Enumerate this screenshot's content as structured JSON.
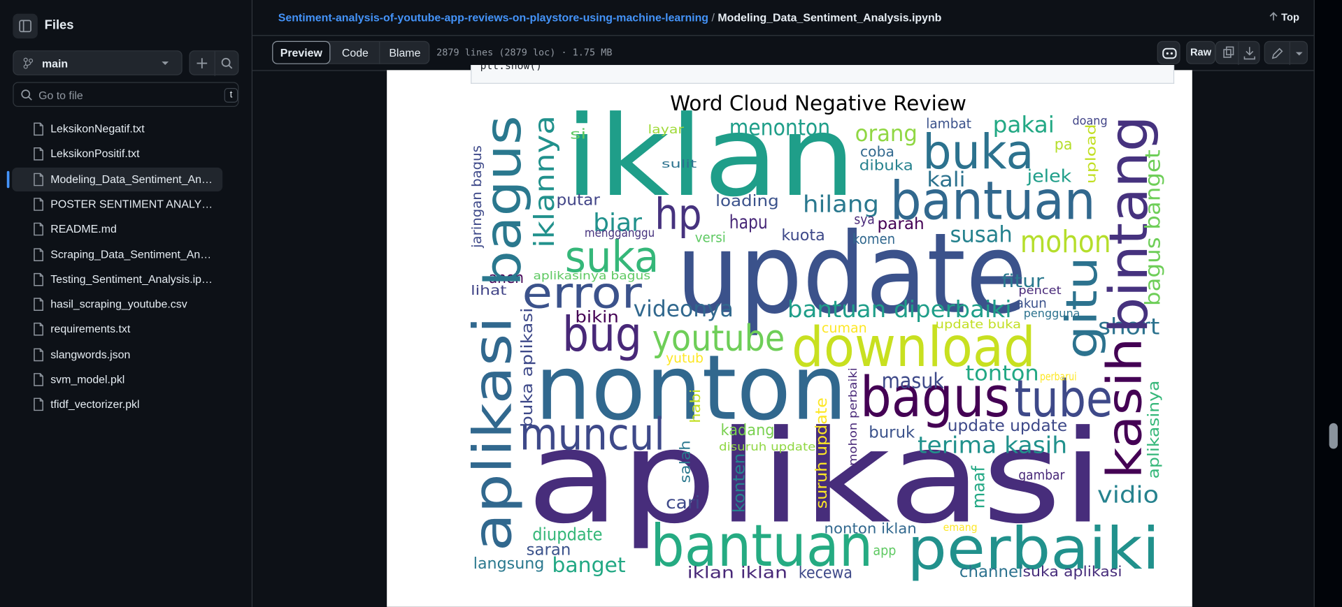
{
  "sidebar": {
    "title": "Files",
    "branch": "main",
    "search_placeholder": "Go to file",
    "search_shortcut": "t",
    "files": [
      "LeksikonNegatif.txt",
      "LeksikonPositif.txt",
      "Modeling_Data_Sentiment_Analysis.ipynb",
      "POSTER SENTIMENT ANALYSIS.pdf",
      "README.md",
      "Scraping_Data_Sentiment_Analysis.ipynb",
      "Testing_Sentiment_Analysis.ipynb",
      "hasil_scraping_youtube.csv",
      "requirements.txt",
      "slangwords.json",
      "svm_model.pkl",
      "tfidf_vectorizer.pkl"
    ]
  },
  "header": {
    "repo": "Sentiment-analysis-of-youtube-app-reviews-on-playstore-using-machine-learning",
    "separator": "/",
    "file": "Modeling_Data_Sentiment_Analysis.ipynb",
    "top": "Top"
  },
  "toolbar": {
    "tabs": [
      "Preview",
      "Code",
      "Blame"
    ],
    "file_info": "2879 lines (2879 loc) · 1.75 MB",
    "raw": "Raw"
  },
  "code_cell": {
    "text": "plt.show()"
  },
  "word_cloud": {
    "title": "Word Cloud Negative Review",
    "words": [
      {
        "text": "iklan",
        "color": "#1f9e89"
      },
      {
        "text": "update",
        "color": "#3b528b"
      },
      {
        "text": "aplikasi",
        "color": "#472d7b"
      },
      {
        "text": "nonton",
        "color": "#31688e"
      },
      {
        "text": "bantuan",
        "color": "#31688e"
      },
      {
        "text": "buka",
        "color": "#2c728e"
      },
      {
        "text": "download",
        "color": "#c8e020"
      },
      {
        "text": "bagus",
        "color": "#440154"
      },
      {
        "text": "tube",
        "color": "#3e4989"
      },
      {
        "text": "bantuan",
        "color": "#25ab82"
      },
      {
        "text": "perbaiki",
        "color": "#21918c"
      },
      {
        "text": "hp",
        "color": "#46327e"
      },
      {
        "text": "suka",
        "color": "#35b779"
      },
      {
        "text": "error",
        "color": "#3b528b"
      },
      {
        "text": "bug",
        "color": "#482878"
      },
      {
        "text": "youtube",
        "color": "#6ece58"
      },
      {
        "text": "muncul",
        "color": "#3e4989"
      },
      {
        "text": "videonya",
        "color": "#31688e"
      },
      {
        "text": "biar",
        "color": "#21918c"
      },
      {
        "text": "hapu",
        "color": "#482878"
      },
      {
        "text": "loading",
        "color": "#3b528b"
      },
      {
        "text": "putar",
        "color": "#414487"
      },
      {
        "text": "menonton",
        "color": "#1f9e89"
      },
      {
        "text": "si",
        "color": "#5ec962"
      },
      {
        "text": "layar",
        "color": "#a0da39"
      },
      {
        "text": "sulit",
        "color": "#2c728e"
      },
      {
        "text": "mengganggu",
        "color": "#46327e"
      },
      {
        "text": "versi",
        "color": "#5ec962"
      },
      {
        "text": "hilang",
        "color": "#2a788e"
      },
      {
        "text": "orang",
        "color": "#90d743"
      },
      {
        "text": "coba",
        "color": "#31688e"
      },
      {
        "text": "dibuka",
        "color": "#26828e"
      },
      {
        "text": "lambat",
        "color": "#3b528b"
      },
      {
        "text": "pakai",
        "color": "#22a884"
      },
      {
        "text": "pa",
        "color": "#b5de2b"
      },
      {
        "text": "doang",
        "color": "#414487"
      },
      {
        "text": "kali",
        "color": "#2c728e"
      },
      {
        "text": "jelek",
        "color": "#1f9e89"
      },
      {
        "text": "kuota",
        "color": "#3e4989"
      },
      {
        "text": "sya",
        "color": "#482878"
      },
      {
        "text": "parah",
        "color": "#440154"
      },
      {
        "text": "komen",
        "color": "#31688e"
      },
      {
        "text": "susah",
        "color": "#26828e"
      },
      {
        "text": "mohon",
        "color": "#b5de2b"
      },
      {
        "text": "aneh",
        "color": "#440154"
      },
      {
        "text": "aplikasinya bagus",
        "color": "#5ec962"
      },
      {
        "text": "lihat",
        "color": "#414487"
      },
      {
        "text": "fitur",
        "color": "#2a788e"
      },
      {
        "text": "pencet",
        "color": "#482878"
      },
      {
        "text": "bantuan diperbaiki",
        "color": "#1f9e89"
      },
      {
        "text": "akun",
        "color": "#3b528b"
      },
      {
        "text": "pengguna",
        "color": "#2c728e"
      },
      {
        "text": "bikin",
        "color": "#440154"
      },
      {
        "text": "cuman",
        "color": "#fde725"
      },
      {
        "text": "update buka",
        "color": "#c2df23"
      },
      {
        "text": "short",
        "color": "#2c728e"
      },
      {
        "text": "yutub",
        "color": "#fde725"
      },
      {
        "text": "masuk",
        "color": "#3e4989"
      },
      {
        "text": "tonton",
        "color": "#22a884"
      },
      {
        "text": "perbarui",
        "color": "#fde725"
      },
      {
        "text": "update update",
        "color": "#3e4989"
      },
      {
        "text": "kadang",
        "color": "#7ad151"
      },
      {
        "text": "buruk",
        "color": "#3b528b"
      },
      {
        "text": "disuruh update",
        "color": "#90d743"
      },
      {
        "text": "terima kasih",
        "color": "#21918c"
      },
      {
        "text": "gambar",
        "color": "#482878"
      },
      {
        "text": "cari",
        "color": "#3e4989"
      },
      {
        "text": "vidio",
        "color": "#26828e"
      },
      {
        "text": "emang",
        "color": "#fde725"
      },
      {
        "text": "nonton iklan",
        "color": "#31688e"
      },
      {
        "text": "diupdate",
        "color": "#35b779"
      },
      {
        "text": "saran",
        "color": "#3b528b"
      },
      {
        "text": "app",
        "color": "#5ec962"
      },
      {
        "text": "langsung",
        "color": "#2a788e"
      },
      {
        "text": "banget",
        "color": "#22a884"
      },
      {
        "text": "iklan iklan",
        "color": "#482878"
      },
      {
        "text": "kecewa",
        "color": "#3e4989"
      },
      {
        "text": "channel",
        "color": "#2c728e"
      },
      {
        "text": "suka aplikasi",
        "color": "#472d7b"
      },
      {
        "text": "aplikasi",
        "color": "#31688e"
      },
      {
        "text": "bagus",
        "color": "#2a788e"
      },
      {
        "text": "iklannya",
        "color": "#21918c"
      },
      {
        "text": "bintang",
        "color": "#46327e"
      },
      {
        "text": "kasih",
        "color": "#440154"
      },
      {
        "text": "gitu",
        "color": "#2c728e"
      },
      {
        "text": "bagus banget",
        "color": "#6ece58"
      },
      {
        "text": "upload",
        "color": "#c2df23"
      },
      {
        "text": "jaringan bagus",
        "color": "#3e4989"
      },
      {
        "text": "buka aplikasi",
        "color": "#3e4989"
      },
      {
        "text": "habi",
        "color": "#c2df23"
      },
      {
        "text": "salah",
        "color": "#2a788e"
      },
      {
        "text": "konten",
        "color": "#26828e"
      },
      {
        "text": "suruh update",
        "color": "#fde725"
      },
      {
        "text": "mohon perbaiki",
        "color": "#482878"
      },
      {
        "text": "maaf",
        "color": "#22a884"
      },
      {
        "text": "aplikasinya",
        "color": "#35b779"
      }
    ]
  }
}
